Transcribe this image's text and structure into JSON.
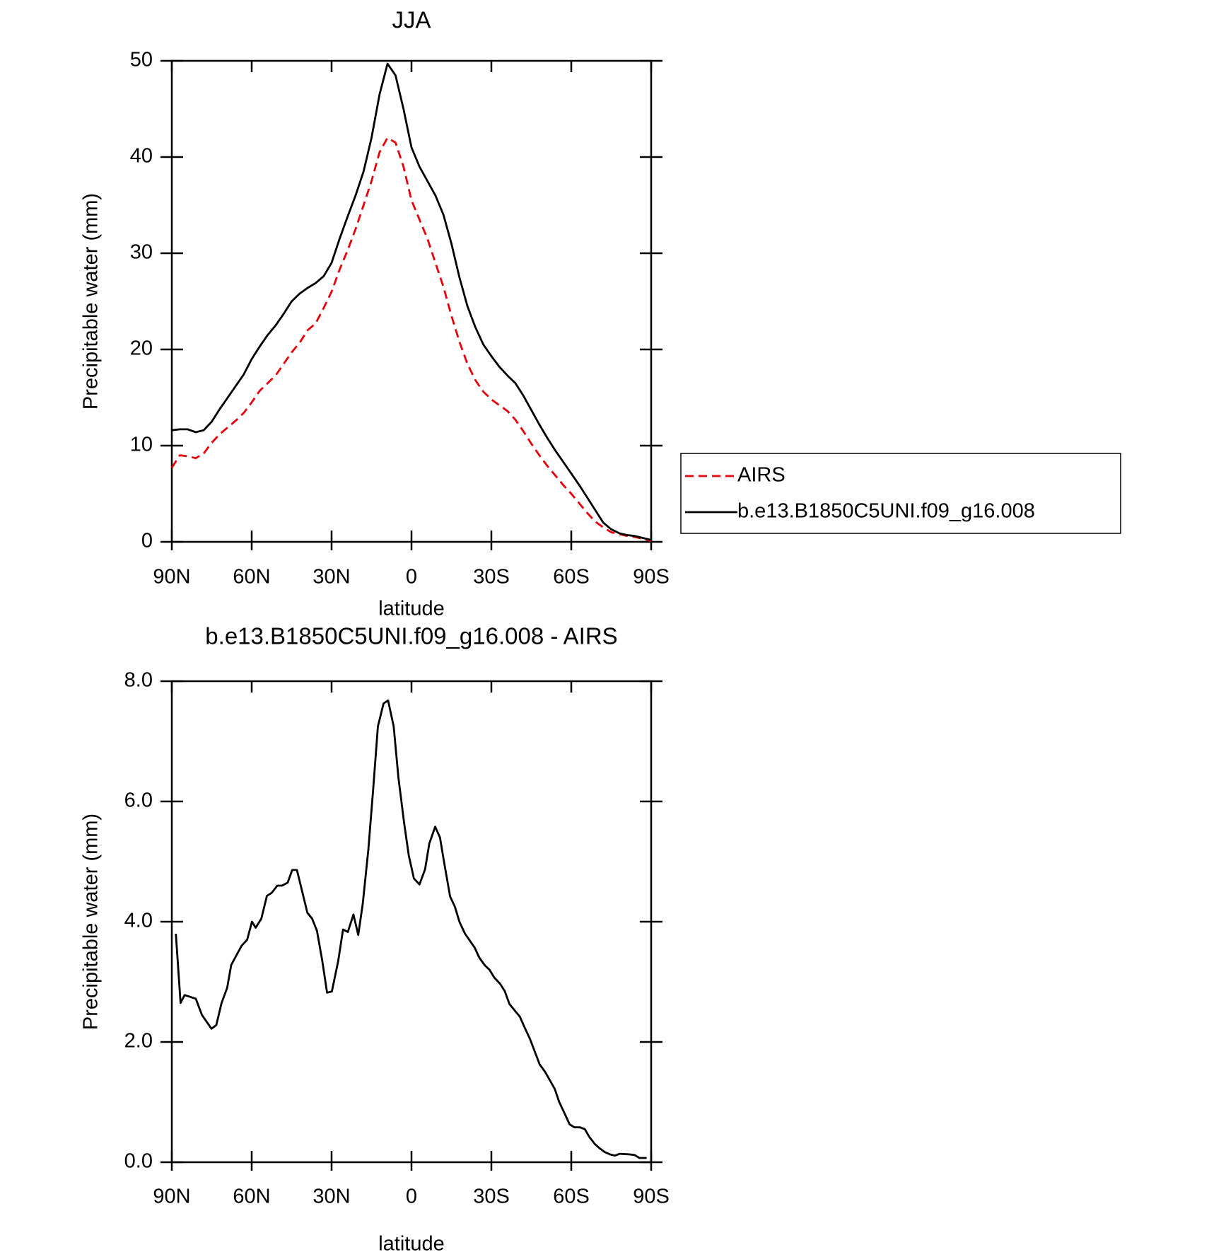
{
  "chart_data": [
    {
      "type": "line",
      "title": "JJA",
      "x_label": "latitude",
      "y_label": "Precipitable water (mm)",
      "xlim": [
        90,
        -90
      ],
      "xticks": [
        {
          "value": 90,
          "label": "90N"
        },
        {
          "value": 60,
          "label": "60N"
        },
        {
          "value": 30,
          "label": "30N"
        },
        0,
        {
          "value": -30,
          "label": "30S"
        },
        {
          "value": -60,
          "label": "60S"
        },
        {
          "value": -90,
          "label": "90S"
        }
      ],
      "ylim": [
        0,
        50
      ],
      "yticks": [
        0,
        10,
        20,
        30,
        40,
        50
      ],
      "legend": "right",
      "x": [
        90,
        87,
        84,
        81,
        78,
        75,
        72,
        69,
        66,
        63,
        60,
        57,
        54,
        51,
        48,
        45,
        42,
        39,
        36,
        33,
        30,
        27,
        24,
        21,
        18,
        15,
        12,
        9,
        6,
        3,
        0,
        -3,
        -6,
        -9,
        -12,
        -15,
        -18,
        -21,
        -24,
        -27,
        -30,
        -33,
        -36,
        -39,
        -42,
        -45,
        -48,
        -51,
        -54,
        -57,
        -60,
        -63,
        -66,
        -69,
        -72,
        -75,
        -78,
        -81,
        -84,
        -87,
        -90
      ],
      "series": [
        {
          "name": "AIRS",
          "color": "#e8000b",
          "dashed": true,
          "values": [
            7.7,
            9,
            8.9,
            8.7,
            9.2,
            10.3,
            11.2,
            11.9,
            12.6,
            13.4,
            14.5,
            15.7,
            16.5,
            17.3,
            18.5,
            19.7,
            20.7,
            22,
            22.7,
            24.3,
            26,
            28.3,
            30.3,
            32.5,
            35,
            37.5,
            40.5,
            42,
            41.5,
            39,
            35.5,
            33.5,
            31.5,
            29,
            26.5,
            23.5,
            20.8,
            18.5,
            16.8,
            15.6,
            14.8,
            14.2,
            13.6,
            12.7,
            11.5,
            10.2,
            9,
            7.9,
            6.9,
            5.9,
            5,
            4,
            3,
            2.1,
            1.5,
            1,
            0.8,
            0.6,
            0.5,
            0.3,
            0.1
          ]
        },
        {
          "name": "b.e13.B1850C5UNI.f09_g16.008",
          "color": "#000000",
          "dashed": false,
          "values": [
            11.6,
            11.7,
            11.7,
            11.4,
            11.6,
            12.5,
            13.8,
            15,
            16.2,
            17.4,
            19,
            20.3,
            21.5,
            22.5,
            23.7,
            25,
            25.8,
            26.4,
            26.9,
            27.6,
            29,
            31.5,
            33.8,
            36,
            38.5,
            42,
            46.5,
            49.7,
            48.5,
            45,
            41,
            39,
            37.5,
            36,
            34,
            31,
            27.5,
            24.5,
            22.3,
            20.5,
            19.3,
            18.2,
            17.3,
            16.5,
            15.2,
            13.7,
            12.2,
            10.8,
            9.5,
            8.3,
            7.1,
            5.9,
            4.6,
            3.3,
            2,
            1.3,
            0.9,
            0.7,
            0.6,
            0.4,
            0.2
          ]
        }
      ]
    },
    {
      "type": "line",
      "title": "b.e13.B1850C5UNI.f09_g16.008 - AIRS",
      "x_label": "latitude",
      "y_label": "Precipitable water (mm)",
      "xlim": [
        90,
        -90
      ],
      "xticks": [
        {
          "value": 90,
          "label": "90N"
        },
        {
          "value": 60,
          "label": "60N"
        },
        {
          "value": 30,
          "label": "30N"
        },
        0,
        {
          "value": -30,
          "label": "30S"
        },
        {
          "value": -60,
          "label": "60S"
        },
        {
          "value": -90,
          "label": "90S"
        }
      ],
      "ylim": [
        0,
        8
      ],
      "yticks": [
        {
          "value": 0,
          "label": "0.0"
        },
        {
          "value": 2,
          "label": "2.0"
        },
        {
          "value": 4,
          "label": "4.0"
        },
        {
          "value": 6,
          "label": "6.0"
        },
        {
          "value": 8,
          "label": "8.0"
        }
      ],
      "color": "#000000",
      "x": [
        88.5,
        86.7,
        85.2,
        81,
        78.7,
        75.1,
        73.3,
        71.3,
        69.2,
        67.7,
        63.8,
        61.7,
        59.9,
        58.5,
        56.4,
        54.3,
        52.5,
        50.4,
        48.6,
        46.5,
        44.8,
        43,
        39.1,
        37.3,
        35.5,
        33.5,
        31.7,
        29.9,
        27.5,
        25.7,
        23.9,
        21.8,
        20,
        18.3,
        16.2,
        14.4,
        12.6,
        10.5,
        8.8,
        6.7,
        4.9,
        2.8,
        1,
        -0.9,
        -3,
        -5.1,
        -6.7,
        -8.9,
        -10.7,
        -12.4,
        -14.5,
        -16.3,
        -18,
        -20.1,
        -23.7,
        -25.5,
        -27.6,
        -29.3,
        -31.1,
        -33.2,
        -35,
        -36.8,
        -40.7,
        -42.4,
        -44.5,
        -48.1,
        -50.2,
        -53.8,
        -55.5,
        -57.6,
        -59.4,
        -61.2,
        -63.3,
        -65.1,
        -66.8,
        -68.9,
        -70.7,
        -72.5,
        -74.6,
        -76.4,
        -78.2,
        -82,
        -83.8,
        -85.6,
        -88.3
      ],
      "values": [
        3.8,
        2.65,
        2.78,
        2.72,
        2.45,
        2.22,
        2.28,
        2.65,
        2.9,
        3.28,
        3.6,
        3.7,
        4,
        3.9,
        4.05,
        4.43,
        4.48,
        4.6,
        4.6,
        4.65,
        4.86,
        4.86,
        4.15,
        4.05,
        3.85,
        3.35,
        2.82,
        2.84,
        3.35,
        3.87,
        3.83,
        4.12,
        3.78,
        4.3,
        5.2,
        6.2,
        7.25,
        7.63,
        7.68,
        7.25,
        6.4,
        5.65,
        5.1,
        4.72,
        4.62,
        4.87,
        5.3,
        5.58,
        5.4,
        4.95,
        4.42,
        4.25,
        4,
        3.8,
        3.57,
        3.4,
        3.27,
        3.2,
        3.07,
        2.97,
        2.85,
        2.63,
        2.42,
        2.25,
        2.05,
        1.63,
        1.5,
        1.22,
        1,
        0.8,
        0.63,
        0.58,
        0.58,
        0.55,
        0.42,
        0.3,
        0.23,
        0.17,
        0.13,
        0.11,
        0.14,
        0.13,
        0.12,
        0.07,
        0.07
      ]
    }
  ]
}
